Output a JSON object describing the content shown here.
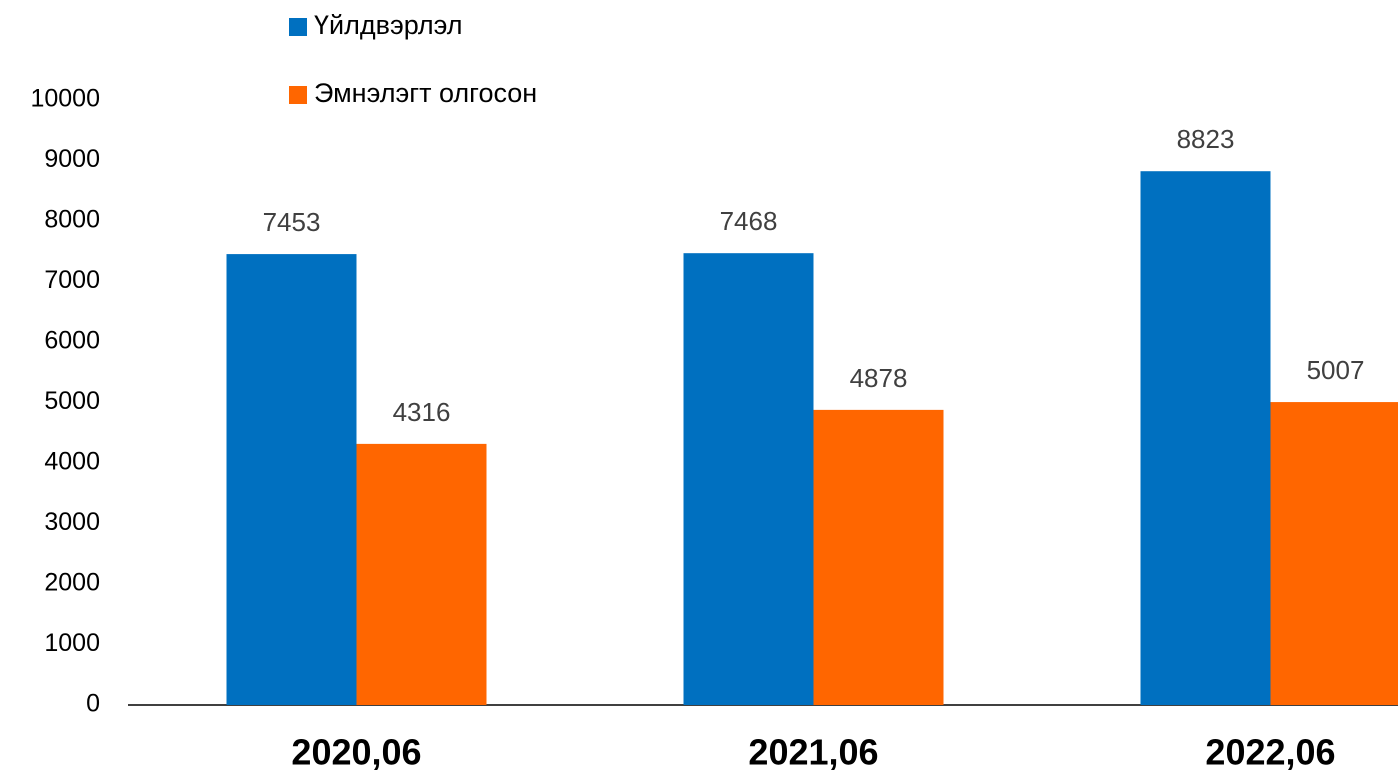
{
  "chart_data": {
    "type": "bar",
    "categories": [
      "2020,06",
      "2021,06",
      "2022,06"
    ],
    "series": [
      {
        "name": "Үйлдвэрлэл",
        "color": "#0070c0",
        "values": [
          7453,
          7468,
          8823
        ]
      },
      {
        "name": "Эмнэлэгт олгосон",
        "color": "#ff6600",
        "values": [
          4316,
          4878,
          5007
        ]
      }
    ],
    "ylim": [
      0,
      10000
    ],
    "yticks": [
      0,
      1000,
      2000,
      3000,
      4000,
      5000,
      6000,
      7000,
      8000,
      9000,
      10000
    ],
    "grid": false,
    "legend": "top"
  }
}
